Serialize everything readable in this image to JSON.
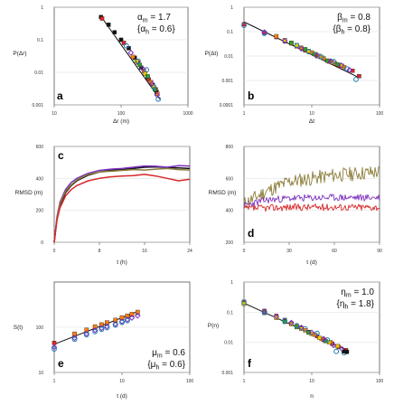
{
  "chart_data": [
    {
      "id": "a",
      "type": "scatter",
      "xscale": "log",
      "yscale": "log",
      "xlim": [
        10,
        1000
      ],
      "ylim": [
        0.001,
        1
      ],
      "xticks": [
        "10",
        "100",
        "1000"
      ],
      "yticks": [
        "1",
        "0.1",
        "0.01",
        "0.001"
      ],
      "xlabel": "Δr (m)",
      "ylabel": "P(Δr)",
      "annotation": [
        "α",
        "m",
        " = 1.7",
        "{α",
        "h",
        " = 0.6}"
      ],
      "colors": [
        "#d62728",
        "#ff7f0e",
        "#e8c900",
        "#2ca02c",
        "#1f77b4",
        "#7b2fbe",
        "#111111"
      ],
      "fit_line": {
        "x": [
          50,
          380
        ],
        "y": [
          0.52,
          0.0015
        ]
      },
      "series": [
        {
          "color": "#111111",
          "x": [
            50,
            65,
            80,
            100,
            130,
            160,
            200,
            250,
            300,
            340
          ],
          "y": [
            0.5,
            0.29,
            0.17,
            0.1,
            0.055,
            0.028,
            0.014,
            0.007,
            0.004,
            0.0025
          ]
        },
        {
          "color": "#d62728",
          "x": [
            52,
            110,
            180,
            260,
            330
          ],
          "y": [
            0.45,
            0.08,
            0.02,
            0.006,
            0.003
          ]
        },
        {
          "color": "#ff7f0e",
          "x": [
            150,
            220,
            280,
            350
          ],
          "y": [
            0.03,
            0.011,
            0.005,
            0.0022
          ]
        },
        {
          "color": "#e8c900",
          "x": [
            170,
            230,
            300
          ],
          "y": [
            0.022,
            0.009,
            0.0038
          ]
        },
        {
          "color": "#2ca02c",
          "x": [
            190,
            250,
            320
          ],
          "y": [
            0.017,
            0.0075,
            0.003
          ]
        },
        {
          "color": "#1f77b4",
          "x": [
            120,
            180,
            240,
            310,
            360
          ],
          "y": [
            0.065,
            0.022,
            0.012,
            0.0035,
            0.0015
          ]
        },
        {
          "color": "#7b2fbe",
          "x": [
            140,
            210,
            290,
            345
          ],
          "y": [
            0.04,
            0.013,
            0.0045,
            0.002
          ]
        }
      ]
    },
    {
      "id": "b",
      "type": "scatter",
      "xscale": "log",
      "yscale": "log",
      "xlim": [
        1,
        100
      ],
      "ylim": [
        0.0001,
        1
      ],
      "xticks": [
        "1",
        "10",
        "100"
      ],
      "yticks": [
        "1",
        "0.1",
        "0.01",
        "0.001",
        "0.0001"
      ],
      "xlabel": "Δt",
      "ylabel": "P(Δt)",
      "annotation": [
        "β",
        "m",
        " = 0.8",
        "{β",
        "h",
        " = 0.8}"
      ],
      "colors": [
        "#d62728",
        "#ff7f0e",
        "#e8c900",
        "#2ca02c",
        "#1f77b4",
        "#7b2fbe",
        "#111111"
      ],
      "fit_line": {
        "x": [
          1,
          50
        ],
        "y": [
          0.25,
          0.0013
        ]
      },
      "series": [
        {
          "color": "#d62728",
          "x": [
            1,
            2,
            3,
            4,
            6,
            8,
            12,
            18,
            25,
            40,
            50
          ],
          "y": [
            0.2,
            0.09,
            0.06,
            0.04,
            0.025,
            0.017,
            0.01,
            0.006,
            0.004,
            0.0025,
            0.0015
          ]
        },
        {
          "color": "#ff7f0e",
          "x": [
            3,
            5,
            7,
            10,
            15,
            22,
            30
          ],
          "y": [
            0.065,
            0.033,
            0.022,
            0.014,
            0.008,
            0.005,
            0.0035
          ]
        },
        {
          "color": "#e8c900",
          "x": [
            4,
            6,
            9,
            13,
            20,
            28
          ],
          "y": [
            0.045,
            0.028,
            0.016,
            0.01,
            0.0055,
            0.004
          ]
        },
        {
          "color": "#2ca02c",
          "x": [
            5,
            8,
            11,
            17,
            24
          ],
          "y": [
            0.035,
            0.019,
            0.012,
            0.0065,
            0.0045
          ]
        },
        {
          "color": "#1f77b4",
          "x": [
            1,
            2,
            6,
            9,
            14,
            21,
            33,
            45
          ],
          "y": [
            0.18,
            0.085,
            0.027,
            0.015,
            0.009,
            0.006,
            0.003,
            0.0011
          ]
        },
        {
          "color": "#7b2fbe",
          "x": [
            2,
            4,
            7,
            12,
            19,
            27,
            36
          ],
          "y": [
            0.095,
            0.042,
            0.02,
            0.011,
            0.0062,
            0.0042,
            0.0027
          ]
        }
      ]
    },
    {
      "id": "c",
      "type": "line",
      "xlim": [
        0,
        24
      ],
      "ylim": [
        0,
        600
      ],
      "xticks": [
        "0",
        "8",
        "16",
        "24"
      ],
      "yticks": [
        "0",
        "200",
        "400",
        "600"
      ],
      "xlabel": "t (h)",
      "ylabel": "RMSD (m)",
      "series": [
        {
          "color": "#111111",
          "x": [
            0,
            0.5,
            1,
            2,
            3,
            4,
            6,
            8,
            10,
            12,
            14,
            16,
            18,
            20,
            22,
            24
          ],
          "y": [
            0,
            150,
            230,
            310,
            355,
            385,
            420,
            440,
            450,
            455,
            462,
            470,
            472,
            468,
            465,
            462
          ]
        },
        {
          "color": "#7b2fbe",
          "x": [
            0,
            0.5,
            1,
            2,
            3,
            4,
            6,
            8,
            10,
            12,
            14,
            16,
            18,
            20,
            22,
            24
          ],
          "y": [
            0,
            160,
            250,
            330,
            375,
            400,
            432,
            450,
            458,
            462,
            470,
            478,
            476,
            470,
            480,
            478
          ]
        },
        {
          "color": "#8b7d3a",
          "x": [
            0,
            0.5,
            1,
            2,
            3,
            4,
            6,
            8,
            10,
            12,
            14,
            16,
            18,
            20,
            22,
            24
          ],
          "y": [
            0,
            155,
            240,
            320,
            360,
            390,
            425,
            440,
            445,
            450,
            455,
            452,
            458,
            462,
            455,
            452
          ]
        },
        {
          "color": "#d62728",
          "x": [
            0,
            0.5,
            1,
            2,
            3,
            4,
            6,
            8,
            10,
            12,
            14,
            16,
            18,
            20,
            22,
            24
          ],
          "y": [
            0,
            140,
            215,
            290,
            330,
            355,
            385,
            400,
            410,
            415,
            418,
            425,
            415,
            400,
            385,
            395
          ]
        }
      ]
    },
    {
      "id": "d",
      "type": "line",
      "xlim": [
        0,
        90
      ],
      "ylim": [
        200,
        800
      ],
      "xticks": [
        "0",
        "30",
        "60",
        "90"
      ],
      "yticks": [
        "200",
        "400",
        "600",
        "800"
      ],
      "xlabel": "t (d)",
      "ylabel": "RMSD (m)",
      "series": [
        {
          "color": "#8b7d3a",
          "base": [
            [
              0,
              440
            ],
            [
              15,
              520
            ],
            [
              30,
              580
            ],
            [
              45,
              600
            ],
            [
              60,
              620
            ],
            [
              75,
              630
            ],
            [
              90,
              640
            ]
          ],
          "noise": 45,
          "seed": 11
        },
        {
          "color": "#7b2fbe",
          "base": [
            [
              0,
              430
            ],
            [
              15,
              465
            ],
            [
              30,
              475
            ],
            [
              60,
              480
            ],
            [
              90,
              480
            ]
          ],
          "noise": 22,
          "seed": 23
        },
        {
          "color": "#d62728",
          "base": [
            [
              0,
              410
            ],
            [
              30,
              420
            ],
            [
              60,
              420
            ],
            [
              90,
              420
            ]
          ],
          "noise": 22,
          "seed": 37
        }
      ]
    },
    {
      "id": "e",
      "type": "scatter",
      "xscale": "log",
      "yscale": "log",
      "xlim": [
        1,
        100
      ],
      "ylim": [
        10,
        1000
      ],
      "xticks": [
        "1",
        "10",
        "100"
      ],
      "yticks": [
        "10",
        "100"
      ],
      "xlabel": "t (d)",
      "ylabel": "S(t)",
      "annotation": [
        "μ",
        "m",
        " = 0.6",
        "{μ",
        "h",
        " = 0.6}"
      ],
      "fit_line": {
        "x": [
          1,
          18
        ],
        "y": [
          42,
          230
        ]
      },
      "series": [
        {
          "color": "#d62728",
          "x": [
            1,
            2,
            3,
            4,
            5,
            6,
            8,
            10,
            12,
            14,
            17
          ],
          "y": [
            45,
            68,
            85,
            100,
            112,
            122,
            140,
            158,
            172,
            188,
            208
          ]
        },
        {
          "color": "#ff7f0e",
          "x": [
            2,
            3,
            4,
            5,
            6,
            8,
            10,
            12,
            14,
            17
          ],
          "y": [
            72,
            88,
            104,
            115,
            128,
            145,
            165,
            180,
            196,
            218
          ]
        },
        {
          "color": "#7b2fbe",
          "x": [
            1,
            2,
            3,
            4,
            5,
            6,
            8,
            10,
            12,
            14,
            17
          ],
          "y": [
            36,
            58,
            72,
            86,
            96,
            104,
            118,
            134,
            148,
            162,
            180
          ]
        },
        {
          "color": "#1f77b4",
          "x": [
            1,
            2,
            3,
            4,
            5,
            6,
            8,
            10,
            12
          ],
          "y": [
            33,
            54,
            68,
            80,
            90,
            98,
            112,
            128,
            140
          ]
        }
      ]
    },
    {
      "id": "f",
      "type": "scatter",
      "xscale": "log",
      "yscale": "log",
      "xlim": [
        1,
        100
      ],
      "ylim": [
        0.001,
        1
      ],
      "xticks": [
        "1",
        "10",
        "100"
      ],
      "yticks": [
        "1",
        "0.1",
        "0.01",
        "0.001"
      ],
      "xlabel": "n",
      "ylabel": "P(n)",
      "annotation": [
        "η",
        "m",
        " = 1.0",
        "{η",
        "h",
        " = 1.8}"
      ],
      "colors": [
        "#d62728",
        "#ff7f0e",
        "#e8c900",
        "#2ca02c",
        "#1f77b4",
        "#7b2fbe",
        "#111111"
      ],
      "fit_line": {
        "x": [
          1,
          35
        ],
        "y": [
          0.2,
          0.0052
        ]
      },
      "series": [
        {
          "color": "#d62728",
          "x": [
            1,
            2,
            3,
            4,
            5,
            7,
            9,
            12,
            15,
            20,
            25,
            32
          ],
          "y": [
            0.22,
            0.11,
            0.075,
            0.055,
            0.042,
            0.03,
            0.022,
            0.016,
            0.012,
            0.009,
            0.007,
            0.0055
          ]
        },
        {
          "color": "#ff7f0e",
          "x": [
            1,
            2,
            3,
            4,
            6,
            8,
            11,
            14,
            19
          ],
          "y": [
            0.2,
            0.1,
            0.07,
            0.05,
            0.034,
            0.025,
            0.018,
            0.013,
            0.01
          ]
        },
        {
          "color": "#e8c900",
          "x": [
            1,
            3,
            5,
            7,
            10,
            13,
            18,
            24
          ],
          "y": [
            0.19,
            0.065,
            0.04,
            0.028,
            0.019,
            0.014,
            0.01,
            0.0075
          ]
        },
        {
          "color": "#2ca02c",
          "x": [
            2,
            4,
            6,
            9,
            16
          ],
          "y": [
            0.095,
            0.048,
            0.032,
            0.021,
            0.011
          ]
        },
        {
          "color": "#1f77b4",
          "x": [
            1,
            2,
            4,
            6,
            8,
            12,
            17,
            23,
            30
          ],
          "y": [
            0.21,
            0.1,
            0.052,
            0.036,
            0.028,
            0.02,
            0.012,
            0.005,
            0.0045
          ]
        },
        {
          "color": "#7b2fbe",
          "x": [
            2,
            3,
            5,
            7,
            10,
            15,
            21,
            28
          ],
          "y": [
            0.105,
            0.072,
            0.045,
            0.031,
            0.021,
            0.013,
            0.008,
            0.006
          ]
        },
        {
          "color": "#111111",
          "x": [
            30,
            33
          ],
          "y": [
            0.005,
            0.0048
          ]
        }
      ]
    }
  ]
}
